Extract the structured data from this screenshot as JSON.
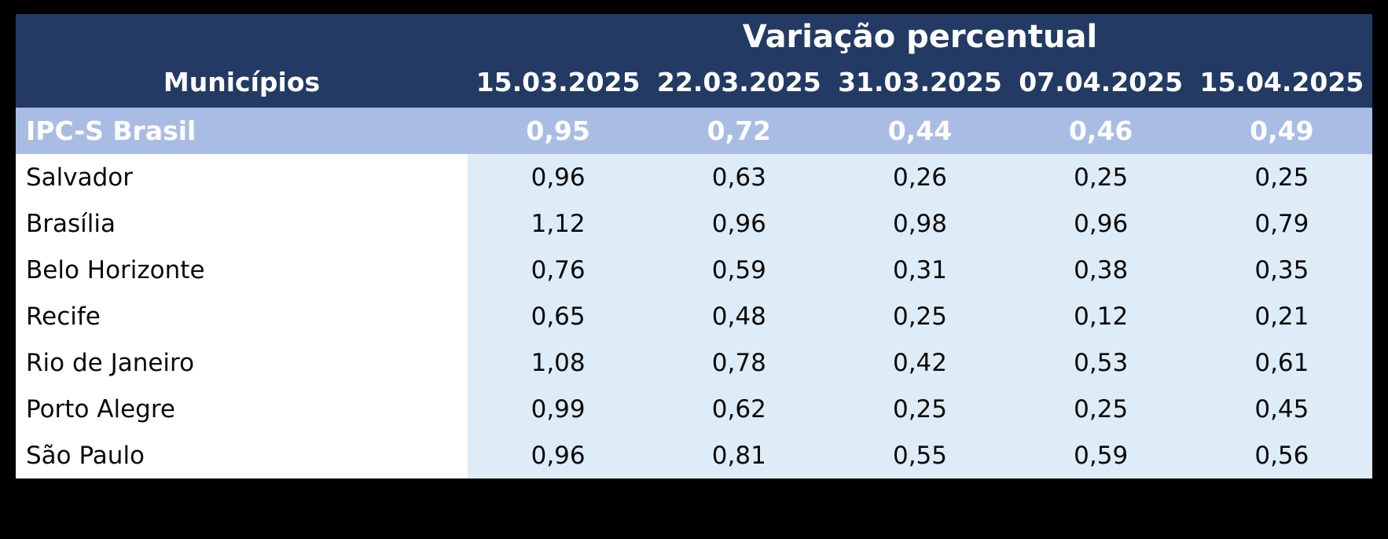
{
  "table": {
    "title": "Variação percentual",
    "columns": {
      "municipality": "Municípios",
      "dates": [
        "15.03.2025",
        "22.03.2025",
        "31.03.2025",
        "07.04.2025",
        "15.04.2025"
      ]
    },
    "highlight_row": {
      "label": "IPC-S Brasil",
      "values": [
        "0,95",
        "0,72",
        "0,44",
        "0,46",
        "0,49"
      ]
    },
    "rows": [
      {
        "label": "Salvador",
        "values": [
          "0,96",
          "0,63",
          "0,26",
          "0,25",
          "0,25"
        ]
      },
      {
        "label": "Brasília",
        "values": [
          "1,12",
          "0,96",
          "0,98",
          "0,96",
          "0,79"
        ]
      },
      {
        "label": "Belo Horizonte",
        "values": [
          "0,76",
          "0,59",
          "0,31",
          "0,38",
          "0,35"
        ]
      },
      {
        "label": "Recife",
        "values": [
          "0,65",
          "0,48",
          "0,25",
          "0,12",
          "0,21"
        ]
      },
      {
        "label": "Rio de Janeiro",
        "values": [
          "1,08",
          "0,78",
          "0,42",
          "0,53",
          "0,61"
        ]
      },
      {
        "label": "Porto Alegre",
        "values": [
          "0,99",
          "0,62",
          "0,25",
          "0,25",
          "0,45"
        ]
      },
      {
        "label": "São Paulo",
        "values": [
          "0,96",
          "0,81",
          "0,55",
          "0,59",
          "0,56"
        ]
      }
    ]
  },
  "colors": {
    "page_bg": "#000000",
    "header_bg": "#223A64",
    "header_text": "#FFFFFF",
    "highlight_bg": "#A9BDE4",
    "highlight_text": "#FFFFFF",
    "name_col_bg": "#FFFFFF",
    "data_bg": "#DEECF7",
    "body_text": "#0A0A0A"
  },
  "chart_data": {
    "type": "table",
    "title": "Variação percentual",
    "row_header": "Municípios",
    "categories": [
      "15.03.2025",
      "22.03.2025",
      "31.03.2025",
      "07.04.2025",
      "15.04.2025"
    ],
    "series": [
      {
        "name": "IPC-S Brasil",
        "values": [
          0.95,
          0.72,
          0.44,
          0.46,
          0.49
        ]
      },
      {
        "name": "Salvador",
        "values": [
          0.96,
          0.63,
          0.26,
          0.25,
          0.25
        ]
      },
      {
        "name": "Brasília",
        "values": [
          1.12,
          0.96,
          0.98,
          0.96,
          0.79
        ]
      },
      {
        "name": "Belo Horizonte",
        "values": [
          0.76,
          0.59,
          0.31,
          0.38,
          0.35
        ]
      },
      {
        "name": "Recife",
        "values": [
          0.65,
          0.48,
          0.25,
          0.12,
          0.21
        ]
      },
      {
        "name": "Rio de Janeiro",
        "values": [
          1.08,
          0.78,
          0.42,
          0.53,
          0.61
        ]
      },
      {
        "name": "Porto Alegre",
        "values": [
          0.99,
          0.62,
          0.25,
          0.25,
          0.45
        ]
      },
      {
        "name": "São Paulo",
        "values": [
          0.96,
          0.81,
          0.55,
          0.59,
          0.56
        ]
      }
    ],
    "layout": {
      "highlight_first_row": true,
      "gridlines": false,
      "legend": "none"
    }
  }
}
